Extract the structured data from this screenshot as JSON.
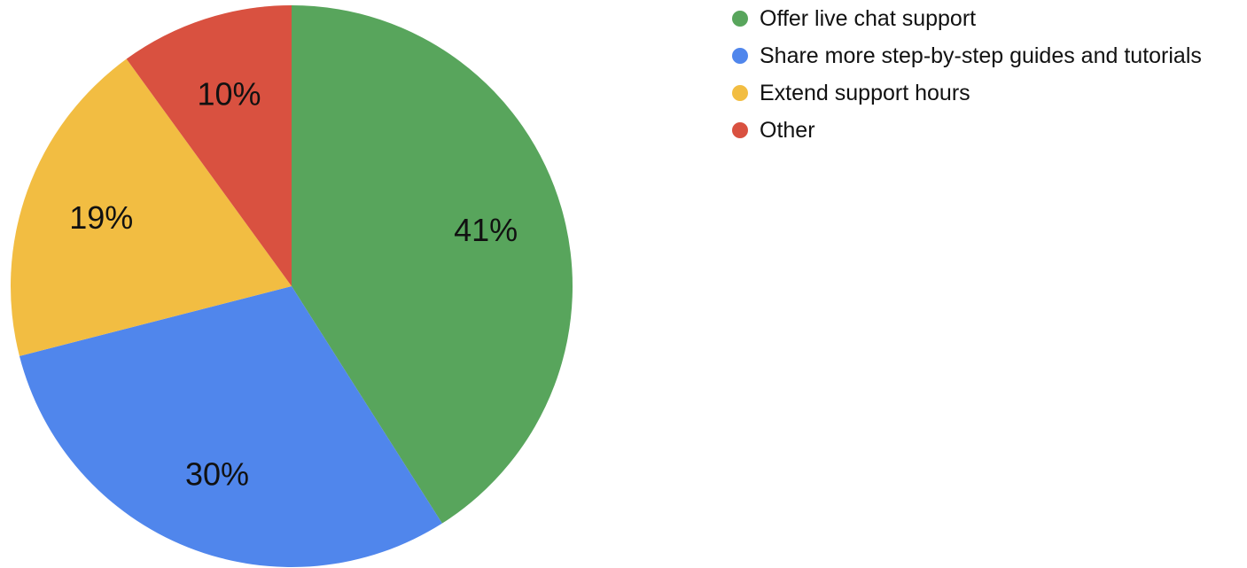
{
  "chart_data": {
    "type": "pie",
    "title": "",
    "slices": [
      {
        "label": "Offer live chat support",
        "value": 41,
        "display": "41%",
        "color": "#58A55C"
      },
      {
        "label": "Share more step-by-step guides and tutorials",
        "value": 30,
        "display": "30%",
        "color": "#5086EC"
      },
      {
        "label": "Extend support hours",
        "value": 19,
        "display": "19%",
        "color": "#F2BD42"
      },
      {
        "label": "Other",
        "value": 10,
        "display": "10%",
        "color": "#D95140"
      }
    ],
    "legend_position": "top-right"
  }
}
